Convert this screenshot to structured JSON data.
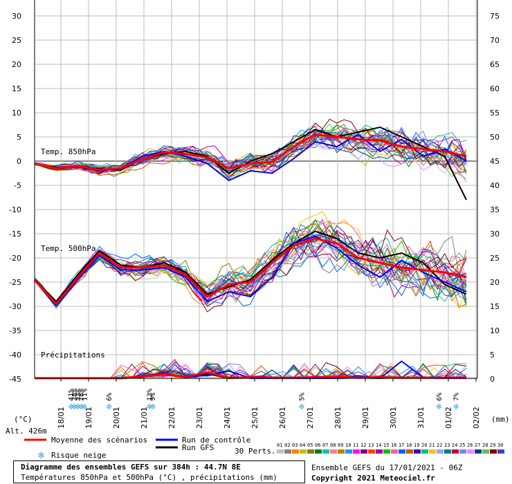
{
  "chart_data": {
    "type": "line",
    "title": "Diagramme des ensembles GEFS sur 384h : 44.7N 8E",
    "subtitle": "Températures 850hPa et 500hPa (°C) , précipitations (mm)",
    "left_unit": "(°C)",
    "right_unit": "(mm)",
    "left_ticks": [
      30,
      25,
      20,
      15,
      10,
      5,
      0,
      -5,
      -10,
      -15,
      -20,
      -25,
      -30,
      -35,
      -40,
      -45
    ],
    "right_ticks": [
      75,
      70,
      65,
      60,
      55,
      50,
      45,
      40,
      35,
      30,
      25,
      20,
      15,
      10,
      5,
      0
    ],
    "x_labels": [
      "18/01",
      "19/01",
      "20/01",
      "21/01",
      "22/01",
      "23/01",
      "24/01",
      "25/01",
      "26/01",
      "27/01",
      "28/01",
      "29/01",
      "30/01",
      "31/01",
      "01/02",
      "02/02"
    ],
    "altitude": "Alt. 426m",
    "panel_labels": {
      "t850": "Temp. 850hPa",
      "t500": "Temp. 500hPa",
      "precip": "Précipitations"
    },
    "snow_risk": [
      {
        "day": 1.33,
        "label": "41%"
      },
      {
        "day": 1.45,
        "label": "38%"
      },
      {
        "day": 1.57,
        "label": "33%"
      },
      {
        "day": 1.69,
        "label": "28%"
      },
      {
        "day": 1.81,
        "label": "11%"
      },
      {
        "day": 2.7,
        "label": "6%"
      },
      {
        "day": 4.16,
        "label": "13%"
      },
      {
        "day": 4.28,
        "label": "9%"
      },
      {
        "day": 9.66,
        "label": "5%"
      },
      {
        "day": 14.62,
        "label": "6%"
      },
      {
        "day": 15.24,
        "label": "7%"
      }
    ],
    "series": [
      {
        "name": "Moyenne des scénarios",
        "color": "#ff0000",
        "t850": [
          -0.5,
          -1.5,
          -1.0,
          -1.8,
          -1.5,
          0.5,
          1.8,
          1.5,
          0.8,
          -1.5,
          -0.5,
          -0.2,
          3.0,
          5.5,
          5.0,
          4.5,
          4.2,
          3.0,
          2.5,
          2.0,
          1.0
        ],
        "t500": [
          -24.5,
          -29.5,
          -24.0,
          -19.0,
          -22.0,
          -22.0,
          -21.5,
          -23.5,
          -28.0,
          -25.5,
          -25.0,
          -21.0,
          -17.5,
          -16.0,
          -17.0,
          -20.0,
          -21.0,
          -22.0,
          -22.5,
          -23.0,
          -24.0
        ],
        "precip": [
          0,
          0,
          0,
          0,
          0,
          0.4,
          0.8,
          0.3,
          1.2,
          0.1,
          0.2,
          0.1,
          0.1,
          0.2,
          0.3,
          0.1,
          0.2,
          0.1,
          0.1,
          0.1,
          0.1
        ]
      },
      {
        "name": "Run de contrôle",
        "color": "#0000ff",
        "t850": [
          -0.5,
          -1.4,
          -1.2,
          -2.0,
          -1.5,
          1.0,
          2.0,
          1.0,
          -0.5,
          -4.0,
          -2.0,
          -2.5,
          0.5,
          4.0,
          3.0,
          5.5,
          2.0,
          4.5,
          1.0,
          2.5,
          0.0
        ],
        "t500": [
          -24.5,
          -30.0,
          -24.5,
          -19.5,
          -22.5,
          -22.5,
          -22.0,
          -24.0,
          -29.0,
          -27.0,
          -28.0,
          -24.0,
          -17.0,
          -15.5,
          -18.0,
          -21.5,
          -24.0,
          -20.5,
          -23.0,
          -25.0,
          -27.0
        ],
        "precip": [
          0,
          0,
          0,
          0,
          0,
          0.5,
          1.0,
          0.2,
          0.6,
          1.5,
          0.0,
          0.0,
          0.0,
          0.0,
          0.0,
          0.5,
          0.0,
          3.5,
          0.2,
          0.0,
          0.0
        ]
      },
      {
        "name": "Run GFS",
        "color": "#000000",
        "t850": [
          -0.5,
          -1.3,
          -1.0,
          -1.6,
          -1.8,
          0.5,
          1.5,
          2.0,
          1.0,
          -2.5,
          0.0,
          1.5,
          4.0,
          6.5,
          5.0,
          6.0,
          7.0,
          5.0,
          3.0,
          1.0,
          -8.0
        ],
        "t500": [
          -24.5,
          -29.0,
          -23.5,
          -18.5,
          -21.5,
          -22.0,
          -21.0,
          -23.0,
          -27.5,
          -26.0,
          -24.5,
          -20.5,
          -17.0,
          -14.5,
          -16.0,
          -19.0,
          -20.0,
          -19.0,
          -21.0,
          -25.5,
          -27.5
        ],
        "precip": [
          0,
          0,
          0,
          0,
          0,
          0.3,
          0.7,
          0.2,
          0.9,
          0.0,
          0.1,
          0.1,
          0.1,
          0.1,
          0.0,
          0.1,
          0.0,
          0.2,
          0.1,
          0.0,
          0.0
        ]
      }
    ],
    "ensemble_members": [
      "01",
      "02",
      "03",
      "04",
      "05",
      "06",
      "07",
      "08",
      "09",
      "10",
      "11",
      "12",
      "13",
      "14",
      "15",
      "16",
      "17",
      "18",
      "19",
      "20",
      "21",
      "22",
      "23",
      "24",
      "25",
      "26",
      "27",
      "28",
      "29",
      "30"
    ]
  },
  "legend": {
    "mean": "Moyenne des scénarios",
    "control": "Run de contrôle",
    "gfs": "Run GFS",
    "snow": "Risque neige",
    "perts": "30 Perts."
  },
  "ensemble_colors": [
    "#c0c0c0",
    "#808080",
    "#ff8000",
    "#c0c000",
    "#808000",
    "#008000",
    "#00c0c0",
    "#ff8080",
    "#c08000",
    "#00a0ff",
    "#ff00ff",
    "#800080",
    "#ff4000",
    "#a000a0",
    "#00c000",
    "#ff60a0",
    "#0060ff",
    "#c06000",
    "#4000c0",
    "#00c080",
    "#ffc000",
    "#a0a0ff",
    "#008080",
    "#c00040",
    "#8080ff",
    "#ff80ff",
    "#004080",
    "#60c060",
    "#800000",
    "#4040c0"
  ],
  "footer": {
    "title": "Diagramme des ensembles GEFS sur 384h : 44.7N 8E",
    "subtitle": "Températures 850hPa et 500hPa (°C) , précipitations (mm)",
    "run": "Ensemble GEFS du 17/01/2021 - 06Z",
    "copyright": "Copyright 2021 Meteociel.fr"
  }
}
